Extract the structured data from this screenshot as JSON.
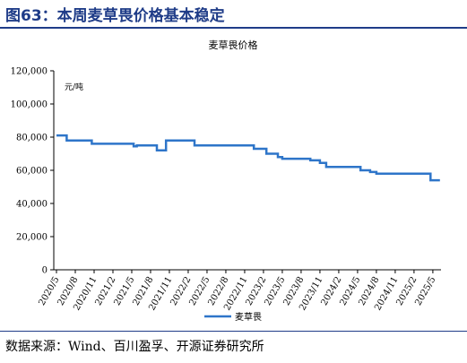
{
  "figure": {
    "title": "图63：本周麦草畏价格基本稳定",
    "source": "数据来源：Wind、百川盈孚、开源证券研究所"
  },
  "chart_data": {
    "type": "line",
    "title": "麦草畏价格",
    "unit": "元/吨",
    "xlabel": "",
    "ylabel": "",
    "ylim": [
      0,
      120000
    ],
    "yticks": [
      "0",
      "20,000",
      "40,000",
      "60,000",
      "80,000",
      "100,000",
      "120,000"
    ],
    "xticks": [
      "2020/5",
      "2020/8",
      "2020/11",
      "2021/2",
      "2021/5",
      "2021/8",
      "2021/11",
      "2022/2",
      "2022/5",
      "2022/8",
      "2022/11",
      "2023/2",
      "2023/5",
      "2023/8",
      "2023/11",
      "2024/2",
      "2024/5",
      "2024/8",
      "2024/11",
      "2025/2",
      "2025/5"
    ],
    "grid": false,
    "legend": "bottom-center",
    "series": [
      {
        "name": "麦草畏",
        "color": "#2e75c9",
        "points": [
          [
            "2020-05-01",
            81000
          ],
          [
            "2020-06-20",
            78000
          ],
          [
            "2020-10-20",
            76000
          ],
          [
            "2021-05-10",
            74500
          ],
          [
            "2021-05-25",
            75000
          ],
          [
            "2021-09-01",
            72000
          ],
          [
            "2021-10-15",
            78000
          ],
          [
            "2022-03-01",
            75000
          ],
          [
            "2022-12-15",
            73000
          ],
          [
            "2023-02-15",
            70000
          ],
          [
            "2023-04-10",
            68000
          ],
          [
            "2023-05-01",
            67000
          ],
          [
            "2023-09-15",
            66000
          ],
          [
            "2023-11-01",
            64500
          ],
          [
            "2023-12-01",
            62000
          ],
          [
            "2024-05-15",
            60000
          ],
          [
            "2024-07-01",
            59000
          ],
          [
            "2024-08-01",
            58000
          ],
          [
            "2025-04-20",
            54000
          ],
          [
            "2025-06-05",
            54000
          ]
        ]
      }
    ]
  }
}
